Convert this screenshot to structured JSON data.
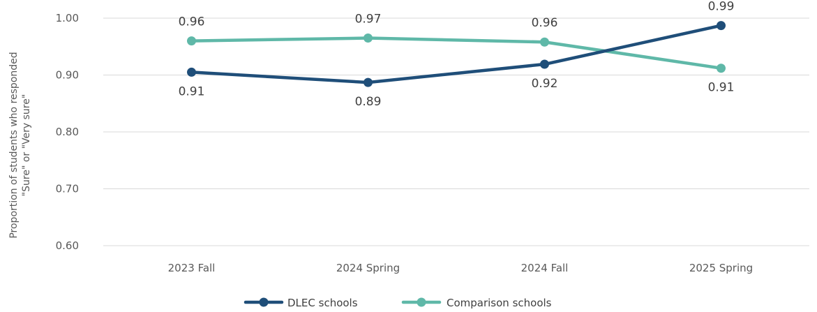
{
  "chart_data": {
    "type": "line",
    "categories": [
      "2023 Fall",
      "2024 Spring",
      "2024 Fall",
      "2025 Spring"
    ],
    "series": [
      {
        "name": "DLEC schools",
        "values": [
          0.905,
          0.887,
          0.919,
          0.987
        ],
        "labels": [
          "0.91",
          "0.89",
          "0.92",
          "0.99"
        ],
        "color": "#1f4e79"
      },
      {
        "name": "Comparison schools",
        "values": [
          0.96,
          0.965,
          0.958,
          0.912
        ],
        "labels": [
          "0.96",
          "0.97",
          "0.96",
          "0.91"
        ],
        "color": "#5fb8a8"
      }
    ],
    "title": "",
    "xlabel": "",
    "ylabel_lines": [
      "Proportion of students who responded",
      "\"Sure\" or \"Very sure\""
    ],
    "ylim": [
      0.6,
      1.0
    ],
    "yticks": [
      "0.60",
      "0.70",
      "0.80",
      "0.90",
      "1.00"
    ],
    "grid": true,
    "legend_position": "bottom"
  }
}
